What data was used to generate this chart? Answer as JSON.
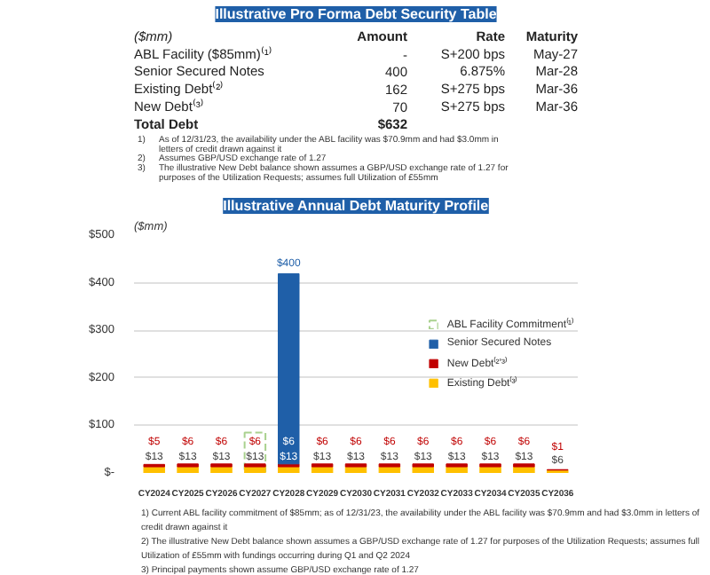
{
  "chart_data": [
    {
      "type": "other",
      "title": "Illustrative Pro Forma Debt Security Table",
      "ylabel": "($mm)",
      "categories": [
        "Amount",
        "Rate",
        "Maturity"
      ],
      "y_categories": [
        "ABL Facility ($85mm)⁽¹⁾",
        "Senior Secured Notes",
        "Existing Debt⁽²⁾",
        "New Debt⁽³⁾",
        "Total Debt"
      ],
      "cell_labels": [
        [
          "-",
          "S+200 bps",
          "May-27"
        ],
        [
          "400",
          "6.875%",
          "Mar-28"
        ],
        [
          "162",
          "S+275 bps",
          "Mar-36"
        ],
        [
          "70",
          "S+275 bps",
          "Mar-36"
        ],
        [
          "$632",
          null,
          null
        ]
      ],
      "annotations": [
        "1)  As of 12/31/23, the availability under the ABL facility was $70.9mm and had $3.0mm in letters of credit drawn against it",
        "2)  Assumes GBP/USD exchange rate of 1.27",
        "3)  The illustrative New Debt balance shown assumes a GBP/USD exchange rate of 1.27 for purposes of the Utilization Requests; assumes full Utilization of £55mm"
      ]
    },
    {
      "type": "bar",
      "title": "Illustrative Annual Debt Maturity Profile",
      "ylabel": "($mm)",
      "categories": [
        "CY2024",
        "CY2025",
        "CY2026",
        "CY2027",
        "CY2028",
        "CY2029",
        "CY2030",
        "CY2031",
        "CY2032",
        "CY2033",
        "CY2034",
        "CY2035",
        "CY2036"
      ],
      "series": [
        {
          "name": "Existing Debt⁽³⁾",
          "color": "#ffc000",
          "values": [
            13,
            13,
            13,
            13,
            13,
            13,
            13,
            13,
            13,
            13,
            13,
            13,
            6
          ],
          "base": [
            0,
            0,
            0,
            0,
            0,
            0,
            0,
            0,
            0,
            0,
            0,
            0,
            0
          ],
          "value_labels": [
            "$13",
            "$13",
            "$13",
            "$13",
            "$13",
            "$13",
            "$13",
            "$13",
            "$13",
            "$13",
            "$13",
            "$13",
            "$6"
          ]
        },
        {
          "name": "New Debt⁽²ʼ³⁾",
          "color": "#c00000",
          "values": [
            5,
            6,
            6,
            6,
            6,
            6,
            6,
            6,
            6,
            6,
            6,
            6,
            1
          ],
          "base": [
            13,
            13,
            13,
            13,
            13,
            13,
            13,
            13,
            13,
            13,
            13,
            13,
            6
          ],
          "value_labels": [
            "$5",
            "$6",
            "$6",
            "$6",
            "$6",
            "$6",
            "$6",
            "$6",
            "$6",
            "$6",
            "$6",
            "$6",
            "$1"
          ]
        },
        {
          "name": "Senior Secured Notes",
          "color": "#1f5fa8",
          "values": [
            null,
            null,
            null,
            null,
            400,
            null,
            null,
            null,
            null,
            null,
            null,
            null,
            null
          ],
          "base": [
            null,
            null,
            null,
            null,
            19,
            null,
            null,
            null,
            null,
            null,
            null,
            null,
            null
          ],
          "value_labels": [
            null,
            null,
            null,
            null,
            "$400",
            null,
            null,
            null,
            null,
            null,
            null,
            null,
            null
          ]
        },
        {
          "name": "ABL Facility Commitment⁽¹⁾",
          "color": "#a9d18e",
          "line_style": "dashed",
          "values": [
            null,
            null,
            null,
            85,
            null,
            null,
            null,
            null,
            null,
            null,
            null,
            null,
            null
          ],
          "base": [
            null,
            null,
            null,
            0,
            null,
            null,
            null,
            null,
            null,
            null,
            null,
            null,
            null
          ]
        }
      ],
      "ylim": [
        0,
        500
      ],
      "yticks": [
        {
          "value": 0,
          "label": "$-"
        },
        {
          "value": 100,
          "label": "$100"
        },
        {
          "value": 200,
          "label": "$200"
        },
        {
          "value": 300,
          "label": "$300"
        },
        {
          "value": 400,
          "label": "$400"
        },
        {
          "value": 500,
          "label": "$500"
        }
      ],
      "grid": "y",
      "legend": "right",
      "annotations": [
        "1)  Current ABL facility commitment of $85mm; as of 12/31/23, the availability under the ABL facility was $70.9mm and had $3.0mm in letters of credit drawn against it",
        "2)  The illustrative New Debt balance shown assumes a GBP/USD exchange rate of 1.27 for purposes of the Utilization Requests; assumes full Utilization of £55mm with fundings occurring during Q1 and Q2 2024",
        "3)  Principal payments shown assume GBP/USD exchange rate of 1.27"
      ]
    }
  ]
}
